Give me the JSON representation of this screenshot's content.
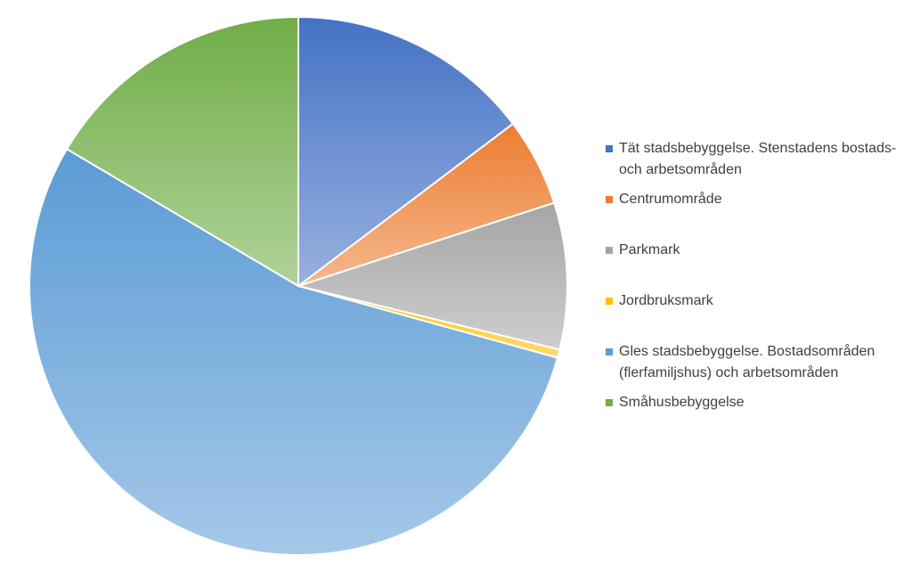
{
  "chart_data": {
    "type": "pie",
    "categories": [
      "Tät stadsbebyggelse. Stenstadens bostads- och arbetsområden",
      "Centrumområde",
      "Parkmark",
      "Jordbruksmark",
      "Gles stadsbebyggelse. Bostadsområden (flerfamiljshus) och arbetsområden",
      "Småhusbebyggelse"
    ],
    "values": [
      14.7,
      5.3,
      8.8,
      0.5,
      54.2,
      16.5
    ],
    "colors": [
      "#4472c4",
      "#ed7d31",
      "#a5a5a5",
      "#ffc000",
      "#5b9bd5",
      "#70ad47"
    ],
    "legend": "right"
  }
}
